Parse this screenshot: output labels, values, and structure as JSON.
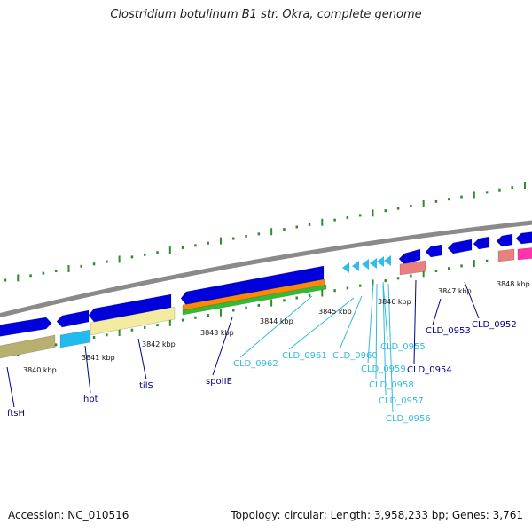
{
  "header": {
    "title": "Clostridium botulinum B1 str. Okra, complete genome"
  },
  "footer": {
    "accession": "Accession: NC_010516",
    "stats": "Topology: circular; Length: 3,958,233 bp; Genes: 3,761"
  },
  "colors": {
    "backbone": "#888888",
    "tick": "#2e8b2e",
    "cds": "#0000dd",
    "cds_light": "#33bbee",
    "rna": "#e88080",
    "pink": "#ff33aa",
    "olive": "#b8b070",
    "pale_yellow": "#f2eba0",
    "cyan": "#22bbee",
    "orange": "#ff8800",
    "green": "#33bb33",
    "label_dark": "#000088",
    "label_light": "#33bbdd"
  },
  "scale": [
    {
      "label": "3840 kbp"
    },
    {
      "label": "3841 kbp"
    },
    {
      "label": "3842 kbp"
    },
    {
      "label": "3843 kbp"
    },
    {
      "label": "3844 kbp"
    },
    {
      "label": "3845 kbp"
    },
    {
      "label": "3846 kbp"
    },
    {
      "label": "3847 kbp"
    },
    {
      "label": "3848 kbp"
    }
  ],
  "genes": [
    {
      "label": "ftsH",
      "tone": "dark"
    },
    {
      "label": "hpt",
      "tone": "dark"
    },
    {
      "label": "tilS",
      "tone": "dark"
    },
    {
      "label": "spoIIE",
      "tone": "dark"
    },
    {
      "label": "CLD_0962",
      "tone": "light"
    },
    {
      "label": "CLD_0961",
      "tone": "light"
    },
    {
      "label": "CLD_0960",
      "tone": "light"
    },
    {
      "label": "CLD_0955",
      "tone": "light"
    },
    {
      "label": "CLD_0959",
      "tone": "light"
    },
    {
      "label": "CLD_0958",
      "tone": "light"
    },
    {
      "label": "CLD_0957",
      "tone": "light"
    },
    {
      "label": "CLD_0956",
      "tone": "light"
    },
    {
      "label": "CLD_0954",
      "tone": "dark"
    },
    {
      "label": "CLD_0953",
      "tone": "dark"
    },
    {
      "label": "CLD_0952",
      "tone": "dark"
    }
  ]
}
